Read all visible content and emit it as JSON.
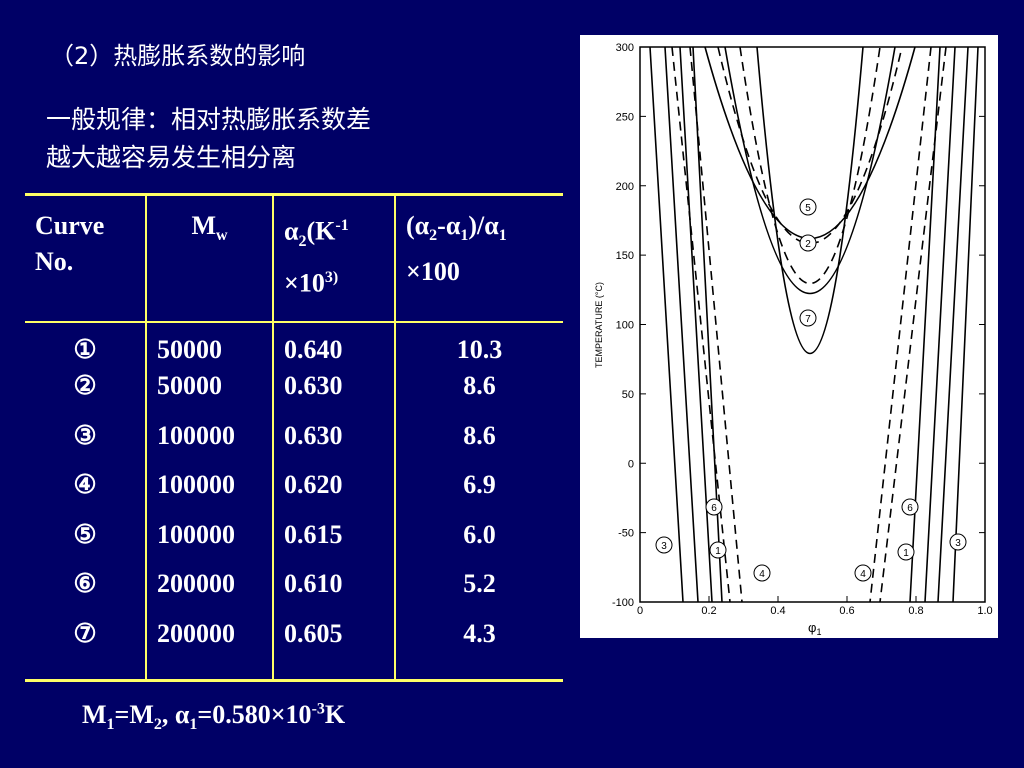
{
  "header": {
    "title": "（2）热膨胀系数的影响",
    "rule": [
      "一般规律：相对热膨胀系数差",
      "越大越容易发生相分离"
    ]
  },
  "table": {
    "header": [
      [
        "Curve No."
      ],
      [
        "M",
        "w"
      ],
      [
        "α",
        "2",
        "(K",
        "-1",
        "×10",
        "3)"
      ],
      [
        "(α",
        "2",
        "-α",
        "1",
        ")/α",
        "1",
        "×100"
      ]
    ],
    "rows": [
      [
        "①",
        "50000",
        "0.640",
        "10.3"
      ],
      [
        "②",
        "50000",
        "0.630",
        "8.6"
      ],
      [
        "③",
        "100000",
        "0.630",
        "8.6"
      ],
      [
        "④",
        "100000",
        "0.620",
        "6.9"
      ],
      [
        "⑤",
        "100000",
        "0.615",
        "6.0"
      ],
      [
        "⑥",
        "200000",
        "0.610",
        "5.2"
      ],
      [
        "⑦",
        "200000",
        "0.605",
        "4.3"
      ]
    ]
  },
  "footer": [
    "M",
    "1",
    "=M",
    "2",
    ", α",
    "1",
    "=0.580×10",
    "-3",
    "K"
  ],
  "figure": {
    "ylabel": "TEMPERATURE (°C)",
    "xlabel": [
      "φ",
      "1"
    ],
    "yticks": [
      "300",
      "250",
      "200",
      "150",
      "100",
      "50",
      "0",
      "-50",
      "-100"
    ],
    "xticks": [
      "0",
      "0.2",
      "0.4",
      "0.6",
      "0.8",
      "1.0"
    ],
    "curve_labels": [
      "5",
      "2",
      "7",
      "6",
      "1",
      "3",
      "4",
      "6",
      "1",
      "3",
      "4"
    ]
  }
}
